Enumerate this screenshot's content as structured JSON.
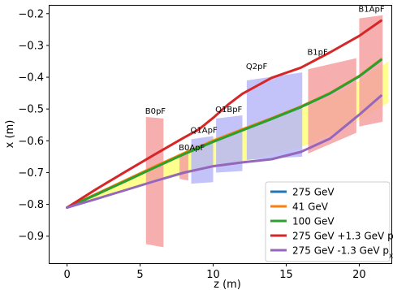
{
  "chart_data": {
    "type": "line",
    "xlabel": "z (m)",
    "ylabel": "x (m)",
    "xlim": [
      -1.2,
      22.2
    ],
    "ylim": [
      -0.985,
      -0.175
    ],
    "xticks": [
      0,
      5,
      10,
      15,
      20
    ],
    "xtick_labels": [
      "0",
      "5",
      "10",
      "15",
      "20"
    ],
    "yticks": [
      -0.9,
      -0.8,
      -0.7,
      -0.6,
      -0.5,
      -0.4,
      -0.3,
      -0.2
    ],
    "ytick_labels": [
      "−0.9",
      "−0.8",
      "−0.7",
      "−0.6",
      "−0.5",
      "−0.4",
      "−0.3",
      "−0.2"
    ],
    "grid": false,
    "legend_position": "lower-right",
    "band": {
      "color": "#ffff55",
      "upper": [
        [
          0,
          -0.81
        ],
        [
          5,
          -0.7
        ],
        [
          10,
          -0.59
        ],
        [
          13,
          -0.545
        ],
        [
          16,
          -0.5
        ],
        [
          19,
          -0.44
        ],
        [
          22,
          -0.35
        ]
      ],
      "lower": [
        [
          22,
          -0.48
        ],
        [
          19,
          -0.56
        ],
        [
          16,
          -0.62
        ],
        [
          13,
          -0.655
        ],
        [
          10,
          -0.685
        ],
        [
          5,
          -0.74
        ],
        [
          0,
          -0.81
        ]
      ]
    },
    "magnets": [
      {
        "name": "B0pF",
        "color": "#f4a0a0",
        "z0": 5.4,
        "z1": 6.6,
        "top0": -0.525,
        "top1": -0.53,
        "bot0": -0.925,
        "bot1": -0.935
      },
      {
        "name": "B0ApF",
        "color": "#f4a0a0",
        "z0": 7.7,
        "z1": 8.3,
        "top0": -0.645,
        "top1": -0.64,
        "bot0": -0.72,
        "bot1": -0.725
      },
      {
        "name": "Q1ApF",
        "color": "#b8b8f8",
        "z0": 8.5,
        "z1": 10.0,
        "top0": -0.595,
        "top1": -0.585,
        "bot0": -0.735,
        "bot1": -0.73
      },
      {
        "name": "Q1BpF",
        "color": "#b8b8f8",
        "z0": 10.2,
        "z1": 12.0,
        "top0": -0.53,
        "top1": -0.52,
        "bot0": -0.7,
        "bot1": -0.695
      },
      {
        "name": "Q2pF",
        "color": "#b8b8f8",
        "z0": 12.3,
        "z1": 16.1,
        "top0": -0.41,
        "top1": -0.385,
        "bot0": -0.66,
        "bot1": -0.65
      },
      {
        "name": "B1pF",
        "color": "#f4a0a0",
        "z0": 16.5,
        "z1": 19.8,
        "top0": -0.375,
        "top1": -0.34,
        "bot0": -0.64,
        "bot1": -0.575
      },
      {
        "name": "B1ApF",
        "color": "#f4a0a0",
        "z0": 20.0,
        "z1": 21.6,
        "top0": -0.215,
        "top1": -0.205,
        "bot0": -0.555,
        "bot1": -0.54
      }
    ],
    "series": [
      {
        "name": "275 GeV",
        "color": "#1f77b4",
        "x": [
          0,
          2,
          4,
          6,
          8,
          10,
          12,
          14,
          16,
          18,
          20,
          21.5
        ],
        "values": [
          -0.81,
          -0.769,
          -0.727,
          -0.684,
          -0.642,
          -0.603,
          -0.567,
          -0.531,
          -0.494,
          -0.451,
          -0.397,
          -0.345
        ]
      },
      {
        "name": "  41 GeV",
        "color": "#ff7f0e",
        "x": [
          0,
          2,
          4,
          6,
          8,
          10,
          12,
          14,
          16,
          18,
          20,
          21.5
        ],
        "values": [
          -0.81,
          -0.767,
          -0.724,
          -0.681,
          -0.639,
          -0.6,
          -0.564,
          -0.529,
          -0.492,
          -0.45,
          -0.396,
          -0.344
        ]
      },
      {
        "name": "100 GeV",
        "color": "#2ca02c",
        "x": [
          0,
          2,
          4,
          6,
          8,
          10,
          12,
          14,
          16,
          18,
          20,
          21.5
        ],
        "values": [
          -0.81,
          -0.769,
          -0.727,
          -0.684,
          -0.642,
          -0.603,
          -0.567,
          -0.531,
          -0.494,
          -0.451,
          -0.397,
          -0.345
        ]
      },
      {
        "name": "275 GeV +1.3 GeV p",
        "name_sub": "x",
        "color": "#d62728",
        "x": [
          0,
          2,
          4,
          6,
          8,
          9,
          10,
          11,
          12,
          14,
          16,
          18,
          20,
          21.5
        ],
        "values": [
          -0.81,
          -0.752,
          -0.697,
          -0.643,
          -0.59,
          -0.565,
          -0.528,
          -0.487,
          -0.452,
          -0.402,
          -0.37,
          -0.322,
          -0.27,
          -0.222
        ]
      },
      {
        "name": "275 GeV -1.3 GeV p",
        "name_sub": "x",
        "color": "#9467bd",
        "x": [
          0,
          2,
          4,
          6,
          8,
          10,
          12,
          14,
          16,
          18,
          20,
          21.5
        ],
        "values": [
          -0.81,
          -0.783,
          -0.755,
          -0.727,
          -0.7,
          -0.68,
          -0.668,
          -0.658,
          -0.635,
          -0.593,
          -0.518,
          -0.458
        ]
      }
    ]
  }
}
